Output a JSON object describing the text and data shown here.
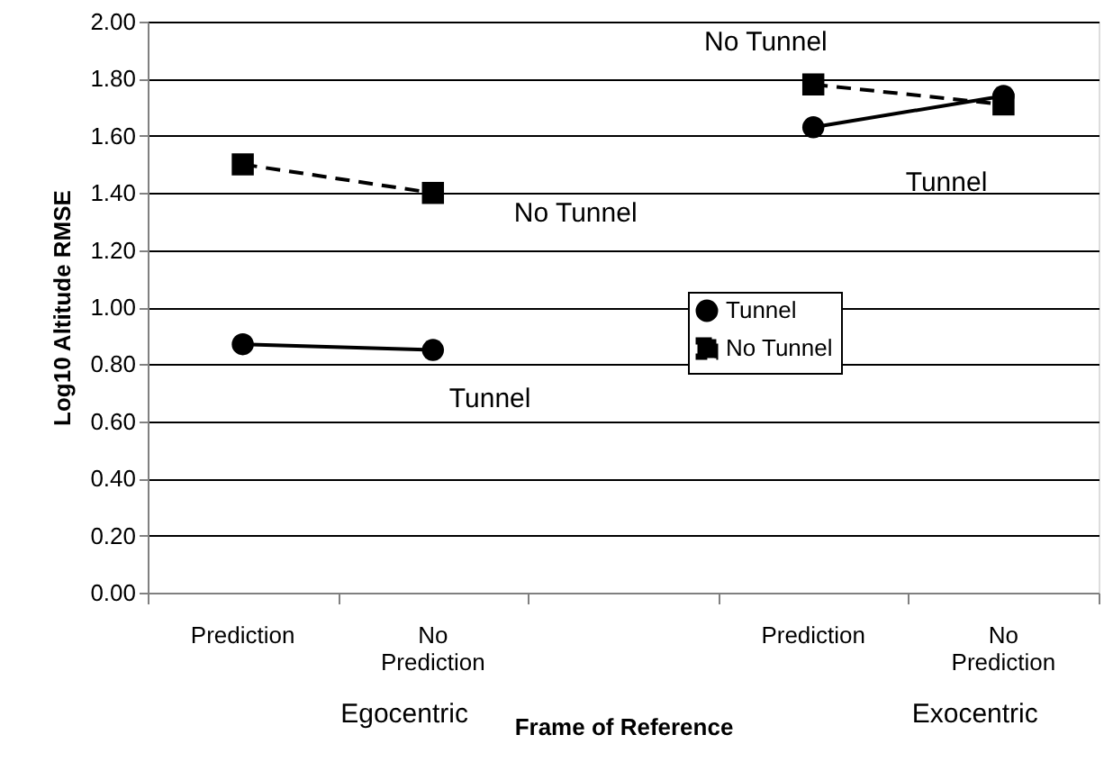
{
  "chart_data": {
    "type": "line",
    "xlabel": "Frame of Reference",
    "ylabel": "Log10 Altitude RMSE",
    "categories": [
      "Prediction",
      "No Prediction",
      null,
      "Prediction",
      "No Prediction"
    ],
    "series": [
      {
        "name": "Tunnel",
        "color": "#000000",
        "marker": "circle",
        "line_style": "solid",
        "values": [
          0.87,
          0.85,
          null,
          1.63,
          1.74
        ]
      },
      {
        "name": "No Tunnel",
        "color": "#000000",
        "marker": "square",
        "line_style": "dashed",
        "values": [
          1.5,
          1.4,
          null,
          1.78,
          1.71
        ]
      }
    ],
    "ylim": [
      0,
      2
    ],
    "yticks": [
      {
        "value": 0,
        "label": "0.00"
      },
      {
        "value": 0.2,
        "label": "0.20"
      },
      {
        "value": 0.4,
        "label": "0.40"
      },
      {
        "value": 0.6,
        "label": "0.60"
      },
      {
        "value": 0.8,
        "label": "0.80"
      },
      {
        "value": 1.0,
        "label": "1.00"
      },
      {
        "value": 1.2,
        "label": "1.20"
      },
      {
        "value": 1.4,
        "label": "1.40"
      },
      {
        "value": 1.6,
        "label": "1.60"
      },
      {
        "value": 1.8,
        "label": "1.80"
      },
      {
        "value": 2.0,
        "label": "2.00"
      }
    ],
    "grid": "y",
    "legend": "right",
    "annotations": [
      "No Tunnel",
      "Tunnel",
      "No Tunnel",
      "Tunnel",
      "Egocentric",
      "Exocentric"
    ]
  }
}
